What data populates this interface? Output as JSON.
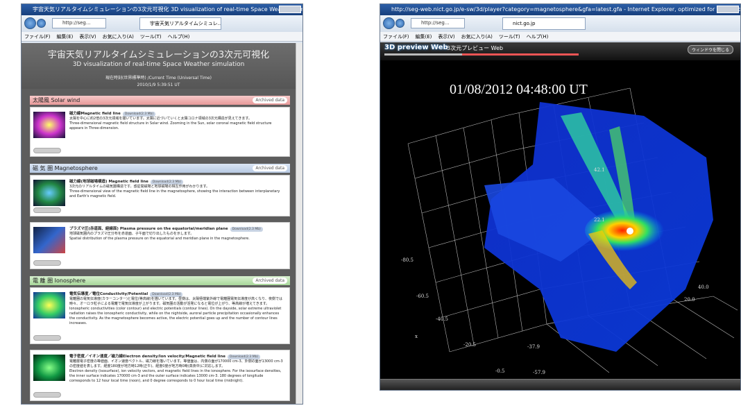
{
  "left_window": {
    "title_bar": "宇宙天気リアルタイムシミュレーションの3次元可視化 3D visualization of real-time Space Weather simulati...",
    "address": "http://seg...",
    "tab": "宇宙天気リアルタイムシミュレ...",
    "menu": [
      "ファイル(F)",
      "編集(E)",
      "表示(V)",
      "お気に入り(A)",
      "ツール(T)",
      "ヘルプ(H)"
    ],
    "page": {
      "title_ja": "宇宙天気リアルタイムシミュレーションの3次元可視化",
      "title_en": "3D visualization of real-time Space Weather simulation",
      "time_label": "現在時刻(世界標準時) /Current Time (Universal Time)",
      "time": "2010/1/9 5:39:51 UT",
      "sections": [
        {
          "heading": "太陽風 Solar wind",
          "archived": "Archived data",
          "items": [
            {
              "title": "磁力線Magnetic field line",
              "download": "Download(2.3 Mb)",
              "text_ja": "太陽を中心に約2倍の3次元領域を描いています。太陽に近づいていくと太陽コロナ領域の3次元構造が見えてきます。",
              "text_en": "Three-dimensional magnetic field structure in Solar wind. Zooming in the Sun, solar coronal magnetic field structure appears in Three-dimension."
            }
          ]
        },
        {
          "heading": "磁 気 圏 Magnetosphere",
          "archived": "Archived data",
          "items": [
            {
              "title": "磁力線(地球磁場構造) Magnetic field line",
              "download": "Download(2.3 Mb)",
              "text_ja": "3次元のリアルタイムの磁気圏構造です。惑星間磁場と地球磁場の相互作用がわかります。",
              "text_en": "Three-dimensional view of the magnetic field line in the magnetosphere, showing the interaction between interplanetary and Earth's magnetic field."
            },
            {
              "title": "プラズマ圧(赤道面、経線面) Plasma pressure on the equatorial/meridian plane",
              "download": "Download(2.3 Mb)",
              "text_ja": "地球磁気圏内のプラズマ圧分布を赤道面、子午面で切り出したものを示します。",
              "text_en": "Spatial distribution of the plasma pressure on the equatorial and meridian plane in the magnetosphere."
            }
          ]
        },
        {
          "heading": "電 離 圏 Ionosphere",
          "archived": "Archived data",
          "items": [
            {
              "title": "電気伝導度／電位Conductivity/Potential",
              "download": "Download(2.3 Mb)",
              "text_ja": "電離圏の電気伝導度(カラーコンター)と電位(等高線)を描いています。昼側は、太陽極端紫外線で電離圏電気伝導度が高くなり、夜側では時々、オーロラ粒子による電離で電気伝導度が上がります。磁気圏の活動が活発になると電位が上がり、等高線が増えてきます。",
              "text_en": "Ionospheric conductivities (color contour) and electric potentials (contour lines). On the dayside, solar extreme ultraviolet radiation raises the ionospheric conductivity, while on the nightside, auroral particle precipitation occasionally enhances the conductivity. As the magnetosphere becomes active, the electric potential goes up and the number of contour lines increases."
            },
            {
              "title": "電子密度／イオン速度／磁力線Electron density/Ion velocity/Magnetic field line",
              "download": "Download(2.3 Mb)",
              "text_ja": "電離層電子密度の等値面、イオン速度ベクトル、磁力線を描いています。等値面は、内側の面が170000 cm-3、外側の面が13000 cm-3の密度値を表します。経度180度が地方時12時(正午)、経度0度が地方時0時(真夜中)に対応します。",
              "text_en": "Electron density (isosurface), ion velocity vectors, and magnetic field lines in the ionosphere. For the isosurface densities, the inner surface indicates 170000 cm-3 and the outer surface indicates 13000 cm-3. 180 degrees of longitude corresponds to 12 hour local time (noon), and 0 degree corresponds to 0 hour local time (midnight)."
            }
          ]
        }
      ]
    }
  },
  "right_window": {
    "title_bar": "http://seg-web.nict.go.jp/e-sw/3d/player?category=magnetosphere&gfa=latest.gfa - Internet Explorer, optimized for Bing and MSN",
    "address": "http://seg...",
    "tab": "nict.go.jp",
    "menu": [
      "ファイル(F)",
      "編集(E)",
      "表示(V)",
      "お気に入り(A)",
      "ツール(T)",
      "ヘルプ(H)"
    ],
    "app_title": "3D preview Web",
    "app_subtitle": "3次元プレビュー Web",
    "close_button": "ウィンドウを閉じる",
    "timestamp": "01/08/2012 04:48:00 UT",
    "axis_labels": [
      "42.1",
      "22.1",
      "-80.5",
      "-60.5",
      "-40.5",
      "-20.5",
      "-0.5",
      "-37.9",
      "-57.9",
      "40.0",
      "20.0",
      "x"
    ]
  }
}
